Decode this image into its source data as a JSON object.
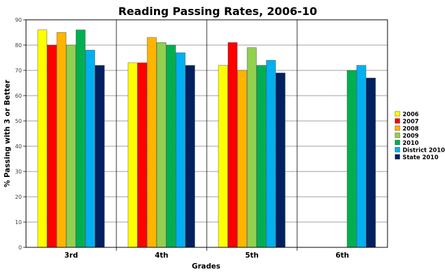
{
  "chart_data": {
    "type": "bar",
    "title": "Reading Passing Rates, 2006-10",
    "xlabel": "Grades",
    "ylabel": "% Passing with 3 or Better",
    "ylim": [
      0,
      90
    ],
    "yticks": [
      0,
      10,
      20,
      30,
      40,
      50,
      60,
      70,
      80,
      90
    ],
    "grid": true,
    "legend_position": "right",
    "categories": [
      "3rd",
      "4th",
      "5th",
      "6th"
    ],
    "series": [
      {
        "name": "2006",
        "color": "#ffff00",
        "values": [
          86,
          73,
          72,
          null
        ]
      },
      {
        "name": "2007",
        "color": "#ff0000",
        "values": [
          80,
          73,
          81,
          null
        ]
      },
      {
        "name": "2008",
        "color": "#ffb400",
        "values": [
          85,
          83,
          70,
          null
        ]
      },
      {
        "name": "2009",
        "color": "#92d050",
        "values": [
          80,
          81,
          79,
          null
        ]
      },
      {
        "name": "2010",
        "color": "#00b050",
        "values": [
          86,
          80,
          72,
          70
        ]
      },
      {
        "name": "District 2010",
        "color": "#00b0f0",
        "values": [
          78,
          77,
          74,
          72
        ]
      },
      {
        "name": "State 2010",
        "color": "#002060",
        "values": [
          72,
          72,
          69,
          67
        ]
      }
    ]
  }
}
